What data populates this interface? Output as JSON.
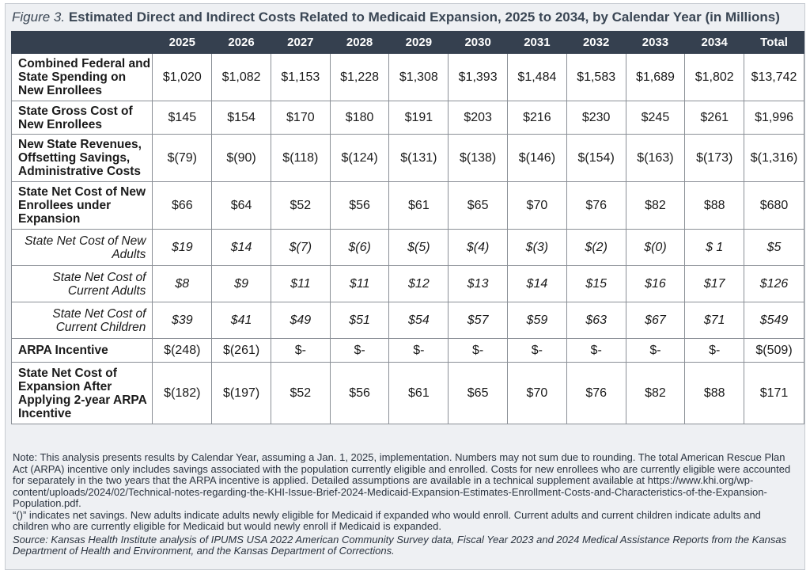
{
  "figure": {
    "label": "Figure 3.",
    "title": "Estimated Direct and Indirect Costs Related to Medicaid Expansion, 2025 to 2034, by Calendar Year (in Millions)"
  },
  "table": {
    "corner": "",
    "columns": [
      "2025",
      "2026",
      "2027",
      "2028",
      "2029",
      "2030",
      "2031",
      "2032",
      "2033",
      "2034",
      "Total"
    ],
    "rows": [
      {
        "label": "Combined Federal and State Spending on New Enrollees",
        "values": [
          "$1,020",
          "$1,082",
          "$1,153",
          "$1,228",
          "$1,308",
          "$1,393",
          "$1,484",
          "$1,583",
          "$1,689",
          "$1,802",
          "$13,742"
        ]
      },
      {
        "label": "State Gross Cost of New Enrollees",
        "values": [
          "$145",
          "$154",
          "$170",
          "$180",
          "$191",
          "$203",
          "$216",
          "$230",
          "$245",
          "$261",
          "$1,996"
        ]
      },
      {
        "label": "New State Revenues, Offsetting Savings, Administrative Costs",
        "values": [
          "$(79)",
          "$(90)",
          "$(118)",
          "$(124)",
          "$(131)",
          "$(138)",
          "$(146)",
          "$(154)",
          "$(163)",
          "$(173)",
          "$(1,316)"
        ]
      },
      {
        "label": "State Net Cost of New Enrollees under Expansion",
        "values": [
          "$66",
          "$64",
          "$52",
          "$56",
          "$61",
          "$65",
          "$70",
          "$76",
          "$82",
          "$88",
          "$680"
        ]
      },
      {
        "label": "State Net Cost of New Adults",
        "values": [
          "$19",
          "$14",
          "$(7)",
          "$(6)",
          "$(5)",
          "$(4)",
          "$(3)",
          "$(2)",
          "$(0)",
          "$ 1",
          "$5"
        ]
      },
      {
        "label": "State Net Cost of Current Adults",
        "values": [
          "$8",
          "$9",
          "$11",
          "$11",
          "$12",
          "$13",
          "$14",
          "$15",
          "$16",
          "$17",
          "$126"
        ]
      },
      {
        "label": "State Net Cost of Current Children",
        "values": [
          "$39",
          "$41",
          "$49",
          "$51",
          "$54",
          "$57",
          "$59",
          "$63",
          "$67",
          "$71",
          "$549"
        ]
      },
      {
        "label": "ARPA Incentive",
        "values": [
          "$(248)",
          "$(261)",
          "$-",
          "$-",
          "$-",
          "$-",
          "$-",
          "$-",
          "$-",
          "$-",
          "$(509)"
        ]
      },
      {
        "label": "State Net Cost of Expansion After Applying 2-year ARPA Incentive",
        "values": [
          "$(182)",
          "$(197)",
          "$52",
          "$56",
          "$61",
          "$65",
          "$70",
          "$76",
          "$82",
          "$88",
          "$171"
        ]
      }
    ]
  },
  "notes": {
    "note": "Note: This analysis presents results by Calendar Year, assuming a Jan. 1, 2025, implementation. Numbers may not sum due to rounding. The total American Rescue Plan Act (ARPA) incentive only includes savings associated with the population currently eligible and enrolled. Costs for new enrollees who are currently eligible were accounted for separately in the two years that the ARPA incentive is applied. Detailed assumptions are available in a technical supplement available at https://www.khi.org/wp-content/uploads/2024/02/Technical-notes-regarding-the-KHI-Issue-Brief-2024-Medicaid-Expansion-Estimates-Enrollment-Costs-and-Characteristics-of-the-Expansion-Population.pdf.",
    "definitions": "“()” indicates net savings. New adults indicate adults newly eligible for Medicaid if expanded who would enroll. Current adults and current children indicate adults and children who are currently eligible for Medicaid but would newly enroll if Medicaid is expanded.",
    "source": "Source: Kansas Health Institute analysis of IPUMS USA 2022 American Community Survey data, Fiscal Year 2023 and 2024 Medical Assistance Reports from the Kansas Department of Health and Environment, and the Kansas Department of Corrections."
  }
}
